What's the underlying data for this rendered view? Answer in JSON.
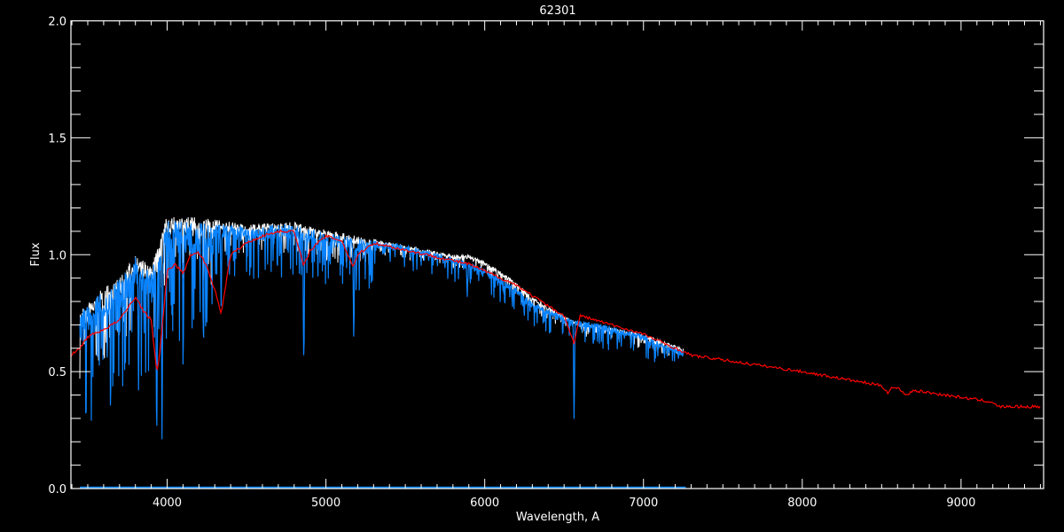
{
  "chart_data": {
    "type": "line",
    "title": "62301",
    "xlabel": "Wavelength, A",
    "ylabel": "Flux",
    "xlim": [
      3394,
      9520
    ],
    "ylim": [
      0,
      2.0
    ],
    "xticks": [
      4000,
      5000,
      6000,
      7000,
      8000,
      9000
    ],
    "xtick_labels": [
      "4000",
      "5000",
      "6000",
      "7000",
      "8000",
      "9000"
    ],
    "yticks": [
      0.0,
      0.5,
      1.0,
      1.5,
      2.0
    ],
    "ytick_labels": [
      "0.0",
      "0.5",
      "1.0",
      "1.5",
      "2.0"
    ],
    "grid": false,
    "background": "#000000",
    "series": [
      {
        "color": "#ffffff",
        "x": [
          3450,
          3600,
          3700,
          3800,
          3900,
          4000,
          4200,
          4500,
          4800,
          4900,
          5200,
          5500,
          5800,
          5900,
          6000,
          6100,
          6200,
          6300,
          6400,
          6550,
          6700,
          7000,
          7250
        ],
        "y": [
          0.76,
          0.86,
          0.9,
          1.0,
          0.95,
          1.17,
          1.16,
          1.13,
          1.14,
          1.12,
          1.08,
          1.04,
          1.0,
          1.0,
          0.97,
          0.93,
          0.88,
          0.82,
          0.78,
          0.72,
          0.7,
          0.66,
          0.6
        ]
      },
      {
        "color": "#0a84ff",
        "x": [
          3450,
          3600,
          3700,
          3800,
          3900,
          4000,
          4200,
          4500,
          4800,
          4900,
          5200,
          5500,
          5800,
          5900,
          6000,
          6100,
          6200,
          6300,
          6400,
          6550,
          6700,
          7000,
          7250
        ],
        "y": [
          0.75,
          0.85,
          0.89,
          0.99,
          0.94,
          1.15,
          1.14,
          1.12,
          1.13,
          1.11,
          1.07,
          1.04,
          0.99,
          0.97,
          0.94,
          0.9,
          0.86,
          0.8,
          0.77,
          0.72,
          0.71,
          0.66,
          0.59
        ],
        "absorption_lines": [
          {
            "x": 3820,
            "y": 0.42
          },
          {
            "x": 3934,
            "y": 0.13
          },
          {
            "x": 3968,
            "y": 0.14
          },
          {
            "x": 4101,
            "y": 0.5
          },
          {
            "x": 4340,
            "y": 0.78
          },
          {
            "x": 4861,
            "y": 0.47
          },
          {
            "x": 5175,
            "y": 0.65
          },
          {
            "x": 5890,
            "y": 0.82
          },
          {
            "x": 6563,
            "y": 0.26
          }
        ]
      },
      {
        "color": "#ff0000",
        "x": [
          3394,
          3450,
          3500,
          3600,
          3700,
          3800,
          3850,
          3900,
          3935,
          3950,
          3970,
          4000,
          4050,
          4100,
          4150,
          4200,
          4250,
          4300,
          4340,
          4400,
          4500,
          4600,
          4700,
          4800,
          4860,
          4900,
          5000,
          5100,
          5170,
          5200,
          5300,
          5500,
          5700,
          5900,
          6000,
          6200,
          6400,
          6500,
          6563,
          6600,
          6800,
          7000,
          7200,
          7300,
          7500,
          8000,
          8500,
          8540,
          8560,
          8600,
          8660,
          8700,
          9000,
          9200,
          9230,
          9500
        ],
        "y": [
          0.57,
          0.6,
          0.65,
          0.68,
          0.72,
          0.82,
          0.76,
          0.72,
          0.5,
          0.55,
          0.7,
          0.93,
          0.96,
          0.92,
          1.0,
          1.01,
          0.95,
          0.85,
          0.75,
          1.0,
          1.05,
          1.08,
          1.1,
          1.1,
          0.95,
          1.02,
          1.08,
          1.06,
          0.95,
          1.0,
          1.05,
          1.02,
          0.99,
          0.96,
          0.93,
          0.87,
          0.78,
          0.74,
          0.62,
          0.74,
          0.7,
          0.66,
          0.6,
          0.57,
          0.55,
          0.5,
          0.44,
          0.41,
          0.43,
          0.43,
          0.4,
          0.42,
          0.39,
          0.37,
          0.35,
          0.35
        ]
      },
      {
        "color": "#0a84ff",
        "x": [
          3450,
          7270
        ],
        "y": [
          0.005,
          0.005
        ]
      }
    ]
  }
}
